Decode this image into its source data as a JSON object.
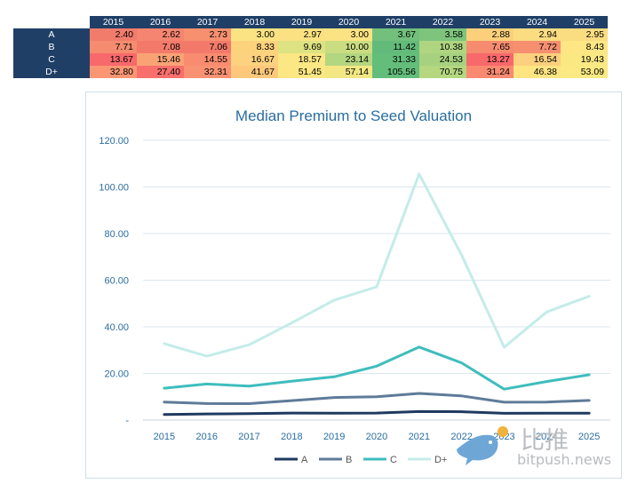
{
  "table": {
    "years": [
      "2015",
      "2016",
      "2017",
      "2018",
      "2019",
      "2020",
      "2021",
      "2022",
      "2023",
      "2024",
      "2025"
    ],
    "rows": [
      {
        "label": "A",
        "values": [
          "2.40",
          "2.62",
          "2.73",
          "3.00",
          "2.97",
          "3.00",
          "3.67",
          "3.58",
          "2.88",
          "2.94",
          "2.95"
        ],
        "colors": [
          "#f27c6c",
          "#f58470",
          "#f6906f",
          "#fbe383",
          "#fbe182",
          "#fbe383",
          "#72c07c",
          "#7ec47d",
          "#fcd07b",
          "#fbdc81",
          "#fbdd81"
        ]
      },
      {
        "label": "B",
        "values": [
          "7.71",
          "7.08",
          "7.06",
          "8.33",
          "9.69",
          "10.00",
          "11.42",
          "10.38",
          "7.65",
          "7.72",
          "8.43"
        ],
        "colors": [
          "#f58c6f",
          "#f37a6a",
          "#f37a6a",
          "#fcd27d",
          "#dde283",
          "#cbdd81",
          "#63bb7b",
          "#b0d580",
          "#f58c6f",
          "#f68f70",
          "#fde683"
        ]
      },
      {
        "label": "C",
        "values": [
          "13.67",
          "15.46",
          "14.55",
          "16.67",
          "18.57",
          "23.14",
          "31.33",
          "24.53",
          "13.27",
          "16.54",
          "19.43"
        ],
        "colors": [
          "#f8696b",
          "#f9a375",
          "#f98c70",
          "#fdd27f",
          "#fbe783",
          "#b3d680",
          "#63be7b",
          "#a6d27f",
          "#f8696b",
          "#fbd07e",
          "#fae883"
        ]
      },
      {
        "label": "D+",
        "values": [
          "32.80",
          "27.40",
          "32.31",
          "41.67",
          "51.45",
          "57.14",
          "105.56",
          "70.75",
          "31.24",
          "46.38",
          "53.09"
        ],
        "colors": [
          "#fa9674",
          "#f86f6c",
          "#f99273",
          "#fdc87c",
          "#fce783",
          "#f2e783",
          "#63be7b",
          "#b4d780",
          "#f98a71",
          "#fee582",
          "#fbe983"
        ]
      }
    ]
  },
  "chart_data": {
    "type": "line",
    "title": "Median Premium to Seed Valuation",
    "x": [
      "2015",
      "2016",
      "2017",
      "2018",
      "2019",
      "2020",
      "2021",
      "2022",
      "2023",
      "2024",
      "2025"
    ],
    "ylim": [
      0,
      120
    ],
    "yticks": [
      0,
      20,
      40,
      60,
      80,
      100,
      120
    ],
    "ytick_labels": [
      "-",
      "20.00",
      "40.00",
      "60.00",
      "80.00",
      "100.00",
      "120.00"
    ],
    "legend_position": "bottom",
    "grid": true,
    "series": [
      {
        "name": "A",
        "color": "#1f3a5f",
        "values": [
          2.4,
          2.62,
          2.73,
          3.0,
          2.97,
          3.0,
          3.67,
          3.58,
          2.88,
          2.94,
          2.95
        ]
      },
      {
        "name": "B",
        "color": "#5e7b98",
        "values": [
          7.71,
          7.08,
          7.06,
          8.33,
          9.69,
          10.0,
          11.42,
          10.38,
          7.65,
          7.72,
          8.43
        ]
      },
      {
        "name": "C",
        "color": "#3fbdbd",
        "values": [
          13.67,
          15.46,
          14.55,
          16.67,
          18.57,
          23.14,
          31.33,
          24.53,
          13.27,
          16.54,
          19.43
        ]
      },
      {
        "name": "D+",
        "color": "#c4ece9",
        "values": [
          32.8,
          27.4,
          32.31,
          41.67,
          51.45,
          57.14,
          105.56,
          70.75,
          31.24,
          46.38,
          53.09
        ]
      }
    ]
  },
  "watermark": {
    "cn": "比推",
    "en": "bitpush.news",
    "bird_color": "#6ea6d6",
    "accent_color": "#f0b23a"
  }
}
